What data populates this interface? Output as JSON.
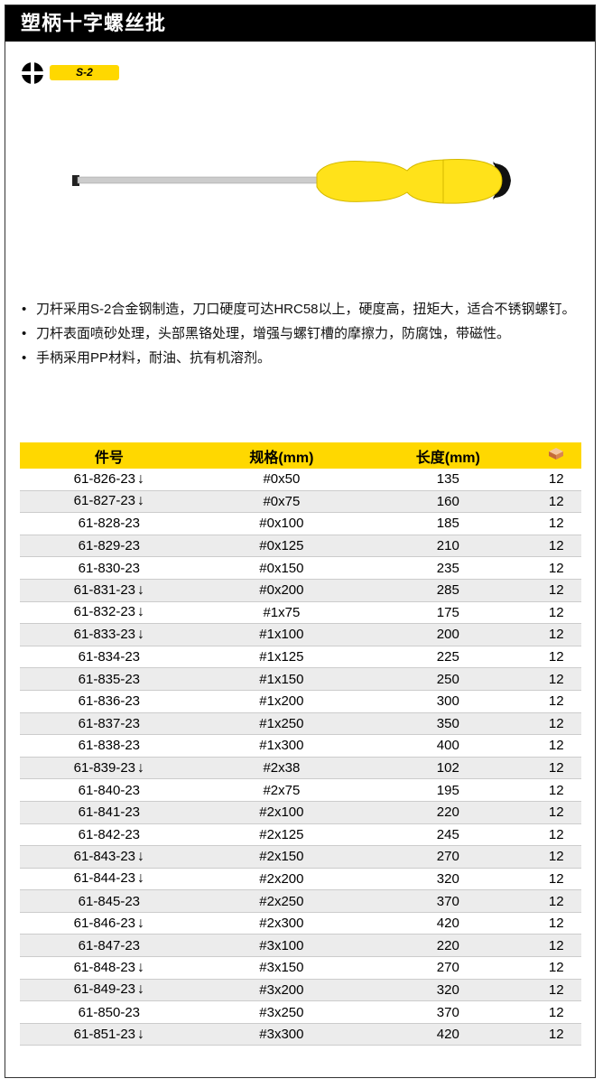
{
  "title": "塑柄十字螺丝批",
  "tip_icon": "phillips-tip-icon",
  "badge": "S-2",
  "features": [
    "刀杆采用S-2合金钢制造，刀口硬度可达HRC58以上，硬度高，扭矩大，适合不锈钢螺钉。",
    "刀杆表面喷砂处理，头部黑铬处理，增强与螺钉槽的摩擦力，防腐蚀，带磁性。",
    "手柄采用PP材料，耐油、抗有机溶剂。"
  ],
  "table": {
    "headers": [
      "件号",
      "规格(mm)",
      "长度(mm)"
    ],
    "box_icon": "carton-box-icon",
    "arrow_icon": "down-arrow-icon",
    "rows": [
      [
        "61-826-23",
        "#0x50",
        "135",
        "12",
        true
      ],
      [
        "61-827-23",
        "#0x75",
        "160",
        "12",
        true
      ],
      [
        "61-828-23",
        "#0x100",
        "185",
        "12",
        false
      ],
      [
        "61-829-23",
        "#0x125",
        "210",
        "12",
        false
      ],
      [
        "61-830-23",
        "#0x150",
        "235",
        "12",
        false
      ],
      [
        "61-831-23",
        "#0x200",
        "285",
        "12",
        true
      ],
      [
        "61-832-23",
        "#1x75",
        "175",
        "12",
        true
      ],
      [
        "61-833-23",
        "#1x100",
        "200",
        "12",
        true
      ],
      [
        "61-834-23",
        "#1x125",
        "225",
        "12",
        false
      ],
      [
        "61-835-23",
        "#1x150",
        "250",
        "12",
        false
      ],
      [
        "61-836-23",
        "#1x200",
        "300",
        "12",
        false
      ],
      [
        "61-837-23",
        "#1x250",
        "350",
        "12",
        false
      ],
      [
        "61-838-23",
        "#1x300",
        "400",
        "12",
        false
      ],
      [
        "61-839-23",
        "#2x38",
        "102",
        "12",
        true
      ],
      [
        "61-840-23",
        "#2x75",
        "195",
        "12",
        false
      ],
      [
        "61-841-23",
        "#2x100",
        "220",
        "12",
        false
      ],
      [
        "61-842-23",
        "#2x125",
        "245",
        "12",
        false
      ],
      [
        "61-843-23",
        "#2x150",
        "270",
        "12",
        true
      ],
      [
        "61-844-23",
        "#2x200",
        "320",
        "12",
        true
      ],
      [
        "61-845-23",
        "#2x250",
        "370",
        "12",
        false
      ],
      [
        "61-846-23",
        "#2x300",
        "420",
        "12",
        true
      ],
      [
        "61-847-23",
        "#3x100",
        "220",
        "12",
        false
      ],
      [
        "61-848-23",
        "#3x150",
        "270",
        "12",
        true
      ],
      [
        "61-849-23",
        "#3x200",
        "320",
        "12",
        true
      ],
      [
        "61-850-23",
        "#3x250",
        "370",
        "12",
        false
      ],
      [
        "61-851-23",
        "#3x300",
        "420",
        "12",
        true
      ]
    ]
  }
}
